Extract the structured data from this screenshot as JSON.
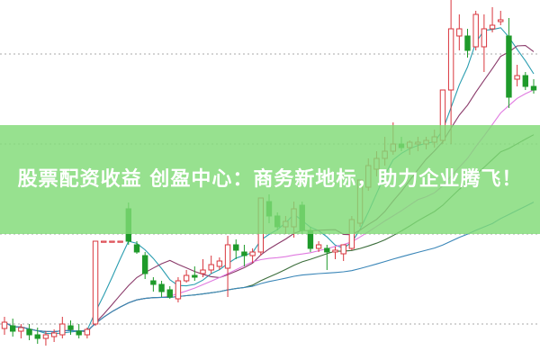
{
  "banner": {
    "title": "股票配资收益 创盈中心：商务新地标，助力企业腾飞！",
    "background_color": "#80da76"
  },
  "chart_data": {
    "type": "candlestick",
    "title": "",
    "xlabel": "",
    "ylabel": "",
    "grid": "dotted horizontal",
    "up_color": "#d9363e",
    "down_color": "#1e9a2a",
    "moving_averages": [
      {
        "window": 5,
        "color": "#2a9db0"
      },
      {
        "window": 10,
        "color": "#8a3a6a"
      },
      {
        "window": 20,
        "color": "#e07ae0"
      },
      {
        "window": 30,
        "color": "#3c6e3c"
      },
      {
        "window": 60,
        "color": "#3a86b8"
      }
    ],
    "candles": [
      [
        8.75,
        12,
        7,
        10.5
      ],
      [
        9.5,
        11.5,
        6.5,
        8
      ],
      [
        8,
        10,
        6,
        9
      ],
      [
        8.5,
        10,
        5.5,
        7
      ],
      [
        7,
        9,
        4.5,
        6
      ],
      [
        6,
        8,
        4,
        7
      ],
      [
        6.5,
        8.5,
        5,
        7.5
      ],
      [
        7,
        12,
        6,
        10
      ],
      [
        9.5,
        11,
        7,
        8.5
      ],
      [
        8,
        10,
        6,
        7
      ],
      [
        7,
        9,
        6,
        8.5
      ],
      [
        10,
        33,
        9.5,
        33
      ],
      [
        33,
        33,
        33,
        33
      ],
      [
        33,
        33,
        33,
        33
      ],
      [
        33,
        33,
        33,
        33
      ],
      [
        42,
        43.75,
        32,
        33
      ],
      [
        32,
        33,
        29.5,
        30
      ],
      [
        29,
        30,
        22.5,
        24
      ],
      [
        22,
        23,
        19,
        21
      ],
      [
        21,
        22,
        17.5,
        19
      ],
      [
        19.5,
        20.5,
        17,
        17.5
      ],
      [
        17,
        23,
        16,
        22
      ],
      [
        22,
        25,
        21.5,
        23.5
      ],
      [
        23.5,
        26,
        22,
        23
      ],
      [
        24,
        28,
        23,
        25
      ],
      [
        25,
        29,
        24,
        26.5
      ],
      [
        26,
        28.5,
        25,
        27.5
      ],
      [
        25.5,
        34.5,
        17.5,
        32
      ],
      [
        32,
        33.5,
        28,
        30.5
      ],
      [
        30,
        32,
        26,
        29
      ],
      [
        29,
        31,
        27,
        30
      ],
      [
        30,
        45,
        29,
        45
      ],
      [
        44,
        46,
        38,
        40
      ],
      [
        40,
        41,
        36,
        37
      ],
      [
        37,
        40,
        35,
        38.5
      ],
      [
        37,
        44,
        34,
        42
      ],
      [
        43,
        44,
        35,
        36
      ],
      [
        36,
        37,
        30,
        31
      ],
      [
        31,
        33,
        30,
        32
      ],
      [
        31,
        32,
        25,
        30
      ],
      [
        30,
        31.5,
        28,
        30.5
      ],
      [
        29.5,
        32,
        27.5,
        32
      ],
      [
        31,
        40,
        30.5,
        39
      ],
      [
        38,
        50,
        37,
        50
      ],
      [
        48,
        56,
        47,
        54
      ],
      [
        53,
        58,
        51,
        56
      ],
      [
        56,
        62,
        54,
        58
      ],
      [
        58,
        66,
        57,
        60
      ],
      [
        60,
        62,
        58,
        59
      ],
      [
        59,
        61,
        57,
        60.5
      ],
      [
        60,
        62,
        58,
        60.5
      ],
      [
        60,
        62,
        58.5,
        61
      ],
      [
        60.5,
        64,
        59,
        62
      ],
      [
        61,
        75,
        60,
        75
      ],
      [
        75,
        100,
        60,
        92
      ],
      [
        90,
        96,
        86,
        92
      ],
      [
        90,
        92,
        84,
        86
      ],
      [
        87,
        97,
        86,
        96
      ],
      [
        87,
        96,
        80,
        92
      ],
      [
        92,
        98,
        91,
        93
      ],
      [
        94,
        97,
        93,
        94.5
      ],
      [
        90,
        95,
        70,
        73
      ],
      [
        78,
        82,
        76,
        79
      ],
      [
        79,
        80,
        75,
        76
      ],
      [
        76,
        78,
        74,
        75
      ]
    ]
  }
}
